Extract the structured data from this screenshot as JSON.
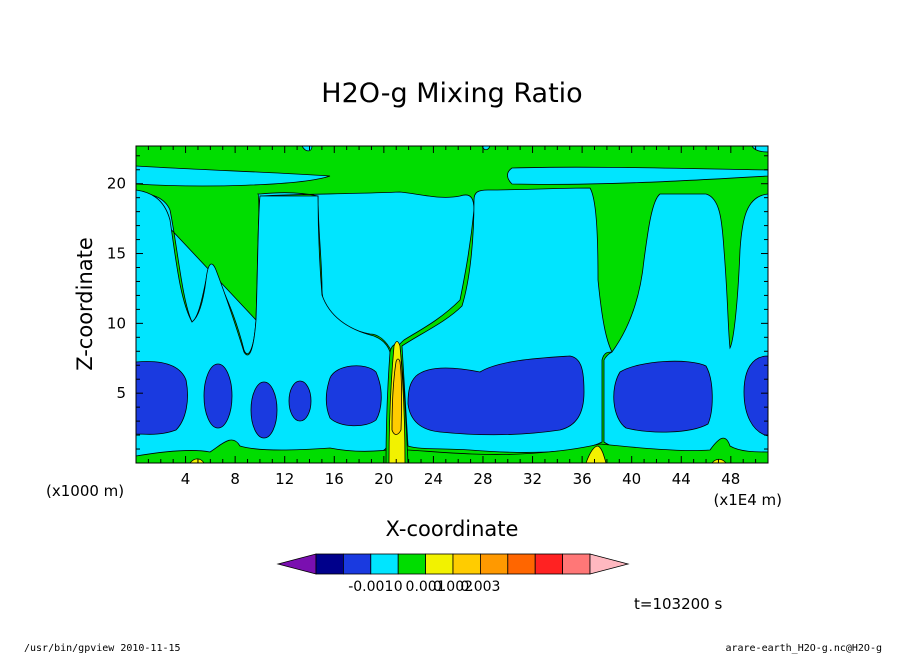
{
  "chart_data": {
    "type": "heatmap",
    "title": "H2O-g Mixing Ratio",
    "xlabel": "X-coordinate",
    "ylabel": "Z-coordinate",
    "x_unit_left": "(x1000 m)",
    "x_unit_right": "(x1E4 m)",
    "x_ticks": [
      "4",
      "8",
      "12",
      "16",
      "20",
      "24",
      "28",
      "32",
      "36",
      "40",
      "44",
      "48"
    ],
    "y_ticks": [
      "5",
      "10",
      "15",
      "20"
    ],
    "xlim": [
      0,
      51
    ],
    "ylim": [
      0,
      22.7
    ],
    "legend": {
      "colors": [
        "#7a0fb0",
        "#00008b",
        "#1a3ae0",
        "#00e5ff",
        "#00dd00",
        "#f2f200",
        "#ffcc00",
        "#ff9900",
        "#ff6600",
        "#ff2222",
        "#ff7777",
        "#ffb8c0"
      ],
      "labels": [
        "-0.001",
        "0",
        "0.001",
        "0.002",
        "0.003"
      ]
    },
    "time_label": "t=103200 s"
  },
  "footer": {
    "left": "/usr/bin/gpview   2010-11-15",
    "right": "arare-earth_H2O-g.nc@H2O-g"
  },
  "colors": {
    "green": "#00dd00",
    "cyan": "#00e5ff",
    "blue": "#1a3ae0",
    "yellow": "#f2f200",
    "orange": "#ffcc00"
  }
}
